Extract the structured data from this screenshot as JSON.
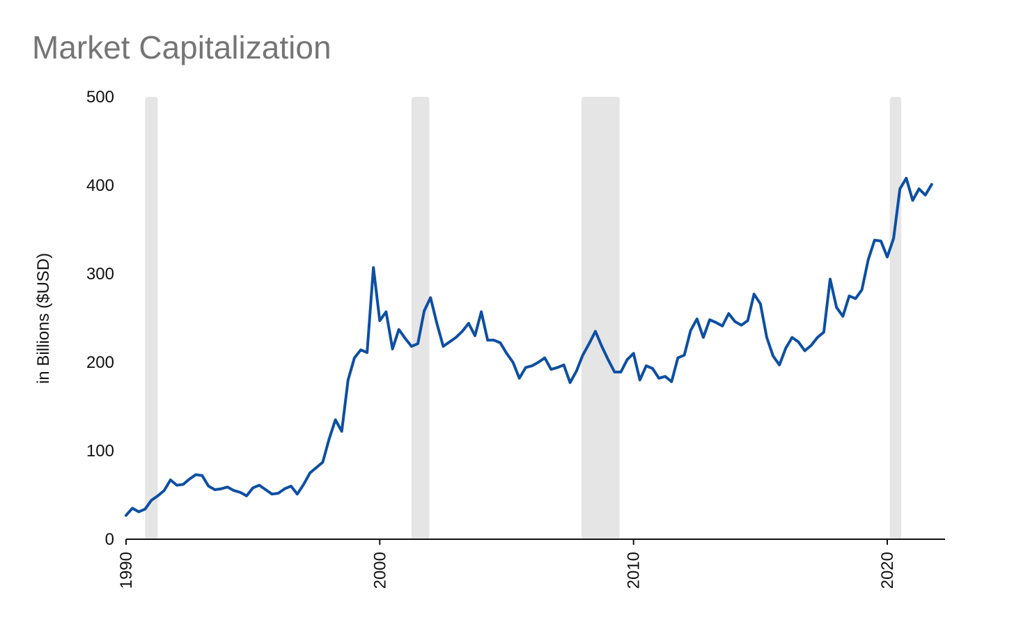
{
  "chart_data": {
    "type": "line",
    "title": "Market Capitalization",
    "xlabel": "",
    "ylabel": "in Billions ($USD)",
    "xlim": [
      1990,
      2022.25
    ],
    "ylim": [
      0,
      500
    ],
    "x_ticks": [
      {
        "value": 1990,
        "label": "1990"
      },
      {
        "value": 2000,
        "label": "2000"
      },
      {
        "value": 2010,
        "label": "2010"
      },
      {
        "value": 2020,
        "label": "2020"
      }
    ],
    "y_ticks": [
      {
        "value": 0,
        "label": "0"
      },
      {
        "value": 100,
        "label": "100"
      },
      {
        "value": 200,
        "label": "200"
      },
      {
        "value": 300,
        "label": "300"
      },
      {
        "value": 400,
        "label": "400"
      },
      {
        "value": 500,
        "label": "500"
      }
    ],
    "grid": false,
    "legend": "none",
    "recession_bands": [
      {
        "start": 1990.75,
        "end": 1991.25
      },
      {
        "start": 2001.25,
        "end": 2001.95
      },
      {
        "start": 2007.95,
        "end": 2009.45
      },
      {
        "start": 2020.1,
        "end": 2020.55
      }
    ],
    "series": [
      {
        "color": "#0d4fa3",
        "points": [
          [
            1990.0,
            27
          ],
          [
            1990.25,
            35
          ],
          [
            1990.5,
            31
          ],
          [
            1990.75,
            34
          ],
          [
            1991.0,
            44
          ],
          [
            1991.25,
            49
          ],
          [
            1991.5,
            55
          ],
          [
            1991.75,
            67
          ],
          [
            1992.0,
            61
          ],
          [
            1992.25,
            62
          ],
          [
            1992.5,
            68
          ],
          [
            1992.75,
            73
          ],
          [
            1993.0,
            72
          ],
          [
            1993.25,
            60
          ],
          [
            1993.5,
            56
          ],
          [
            1993.75,
            57
          ],
          [
            1994.0,
            59
          ],
          [
            1994.25,
            55
          ],
          [
            1994.5,
            53
          ],
          [
            1994.75,
            49
          ],
          [
            1995.0,
            58
          ],
          [
            1995.25,
            61
          ],
          [
            1995.5,
            56
          ],
          [
            1995.75,
            51
          ],
          [
            1996.0,
            52
          ],
          [
            1996.25,
            57
          ],
          [
            1996.5,
            60
          ],
          [
            1996.75,
            51
          ],
          [
            1997.0,
            62
          ],
          [
            1997.25,
            75
          ],
          [
            1997.5,
            81
          ],
          [
            1997.75,
            87
          ],
          [
            1998.0,
            113
          ],
          [
            1998.25,
            135
          ],
          [
            1998.5,
            122
          ],
          [
            1998.75,
            180
          ],
          [
            1999.0,
            205
          ],
          [
            1999.25,
            214
          ],
          [
            1999.5,
            211
          ],
          [
            1999.75,
            307
          ],
          [
            2000.0,
            247
          ],
          [
            2000.25,
            257
          ],
          [
            2000.5,
            215
          ],
          [
            2000.75,
            237
          ],
          [
            2001.0,
            227
          ],
          [
            2001.25,
            218
          ],
          [
            2001.5,
            221
          ],
          [
            2001.75,
            258
          ],
          [
            2002.0,
            273
          ],
          [
            2002.25,
            244
          ],
          [
            2002.5,
            218
          ],
          [
            2002.75,
            223
          ],
          [
            2003.0,
            228
          ],
          [
            2003.25,
            235
          ],
          [
            2003.5,
            244
          ],
          [
            2003.75,
            230
          ],
          [
            2004.0,
            257
          ],
          [
            2004.25,
            225
          ],
          [
            2004.5,
            225
          ],
          [
            2004.75,
            222
          ],
          [
            2005.0,
            210
          ],
          [
            2005.25,
            200
          ],
          [
            2005.5,
            182
          ],
          [
            2005.75,
            194
          ],
          [
            2006.0,
            196
          ],
          [
            2006.25,
            200
          ],
          [
            2006.5,
            205
          ],
          [
            2006.75,
            192
          ],
          [
            2007.0,
            194
          ],
          [
            2007.25,
            197
          ],
          [
            2007.5,
            177
          ],
          [
            2007.75,
            190
          ],
          [
            2008.0,
            208
          ],
          [
            2008.25,
            221
          ],
          [
            2008.5,
            235
          ],
          [
            2008.75,
            218
          ],
          [
            2009.0,
            203
          ],
          [
            2009.25,
            189
          ],
          [
            2009.5,
            189
          ],
          [
            2009.75,
            203
          ],
          [
            2010.0,
            210
          ],
          [
            2010.25,
            180
          ],
          [
            2010.5,
            196
          ],
          [
            2010.75,
            193
          ],
          [
            2011.0,
            182
          ],
          [
            2011.25,
            184
          ],
          [
            2011.5,
            178
          ],
          [
            2011.75,
            205
          ],
          [
            2012.0,
            208
          ],
          [
            2012.25,
            236
          ],
          [
            2012.5,
            249
          ],
          [
            2012.75,
            228
          ],
          [
            2013.0,
            248
          ],
          [
            2013.25,
            245
          ],
          [
            2013.5,
            241
          ],
          [
            2013.75,
            255
          ],
          [
            2014.0,
            246
          ],
          [
            2014.25,
            242
          ],
          [
            2014.5,
            247
          ],
          [
            2014.75,
            277
          ],
          [
            2015.0,
            266
          ],
          [
            2015.25,
            228
          ],
          [
            2015.5,
            207
          ],
          [
            2015.75,
            197
          ],
          [
            2016.0,
            216
          ],
          [
            2016.25,
            228
          ],
          [
            2016.5,
            223
          ],
          [
            2016.75,
            213
          ],
          [
            2017.0,
            219
          ],
          [
            2017.25,
            228
          ],
          [
            2017.5,
            234
          ],
          [
            2017.75,
            294
          ],
          [
            2018.0,
            262
          ],
          [
            2018.25,
            252
          ],
          [
            2018.5,
            275
          ],
          [
            2018.75,
            272
          ],
          [
            2019.0,
            282
          ],
          [
            2019.25,
            316
          ],
          [
            2019.5,
            338
          ],
          [
            2019.75,
            337
          ],
          [
            2020.0,
            319
          ],
          [
            2020.25,
            340
          ],
          [
            2020.5,
            396
          ],
          [
            2020.75,
            408
          ],
          [
            2021.0,
            383
          ],
          [
            2021.25,
            396
          ],
          [
            2021.5,
            389
          ],
          [
            2021.75,
            401
          ]
        ]
      }
    ]
  }
}
